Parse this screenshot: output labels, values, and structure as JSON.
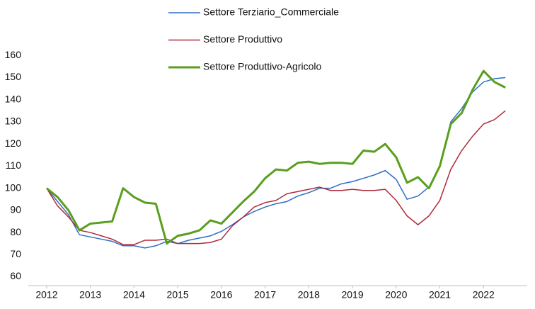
{
  "chart_data": {
    "type": "line",
    "x": [
      2012,
      2012.25,
      2012.5,
      2012.75,
      2013,
      2013.25,
      2013.5,
      2013.75,
      2014,
      2014.25,
      2014.5,
      2014.75,
      2015,
      2015.25,
      2015.5,
      2015.75,
      2016,
      2016.25,
      2016.5,
      2016.75,
      2017,
      2017.25,
      2017.5,
      2017.75,
      2018,
      2018.25,
      2018.5,
      2018.75,
      2019,
      2019.25,
      2019.5,
      2019.75,
      2020,
      2020.25,
      2020.5,
      2020.75,
      2021,
      2021.25,
      2021.5,
      2021.75,
      2022,
      2022.25,
      2022.5
    ],
    "series": [
      {
        "name": "Settore Terziario_Commerciale",
        "color": "#2e6fc4",
        "width": 1.5,
        "values": [
          100,
          94,
          88,
          79,
          78,
          77,
          76,
          74,
          74,
          73,
          74,
          76,
          75,
          76.5,
          77.5,
          78.5,
          80.5,
          83.5,
          87,
          89.5,
          91.5,
          93,
          94,
          96.5,
          98,
          100,
          100,
          102,
          103,
          104.5,
          106,
          108,
          104,
          95,
          96.5,
          100.5,
          110,
          130,
          136,
          143.5,
          148,
          149.5,
          150
        ]
      },
      {
        "name": "Settore Produttivo",
        "color": "#b02a3a",
        "width": 1.5,
        "values": [
          100,
          92,
          87,
          81,
          80,
          78.5,
          77,
          74.5,
          74.5,
          76.5,
          76.5,
          77,
          75,
          75,
          75,
          75.5,
          77,
          83,
          87,
          91.5,
          93.5,
          94.5,
          97.5,
          98.5,
          99.5,
          100.5,
          99,
          99,
          99.5,
          99,
          99,
          99.5,
          94.5,
          87.5,
          83.5,
          87.5,
          94.5,
          108.5,
          117,
          123.5,
          129,
          131,
          135
        ]
      },
      {
        "name": "Settore Produttivo-Agricolo",
        "color": "#5a9e1e",
        "width": 3,
        "values": [
          100,
          96,
          90,
          81,
          84,
          84.5,
          85,
          100,
          96,
          93.5,
          93,
          75,
          78.5,
          79.5,
          81,
          85.5,
          84,
          89,
          94,
          98.5,
          104.5,
          108.5,
          108,
          111.5,
          112,
          111,
          111.5,
          111.5,
          111,
          117,
          116.5,
          120,
          114,
          102.5,
          105,
          100,
          110,
          129,
          134,
          144.5,
          153,
          148,
          145.5
        ]
      }
    ],
    "xlim": [
      2011.58,
      2023.0
    ],
    "xticks": [
      2012,
      2013,
      2014,
      2015,
      2016,
      2017,
      2018,
      2019,
      2020,
      2021,
      2022
    ],
    "ylim": [
      56,
      162
    ],
    "yticks": [
      60,
      70,
      80,
      90,
      100,
      110,
      120,
      130,
      140,
      150,
      160
    ],
    "grid": false
  }
}
